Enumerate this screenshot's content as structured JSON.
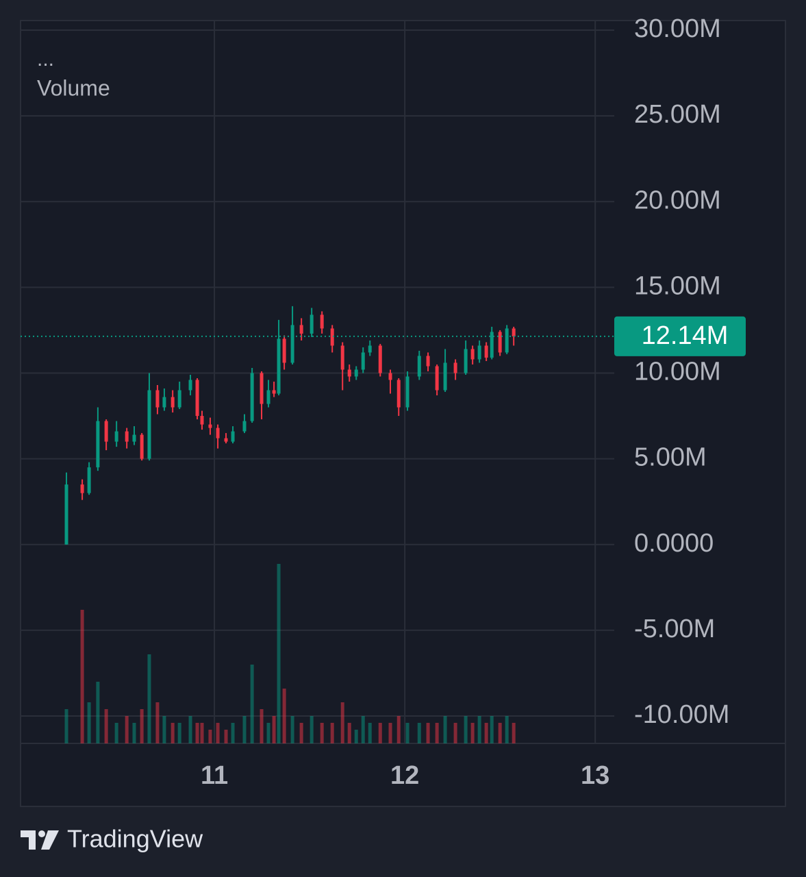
{
  "chart_data": {
    "type": "candlestick",
    "legend_title": "...",
    "legend_label": "Volume",
    "x": [
      10.223,
      10.306,
      10.342,
      10.388,
      10.432,
      10.486,
      10.54,
      10.579,
      10.619,
      10.658,
      10.701,
      10.737,
      10.781,
      10.817,
      10.874,
      10.91,
      10.935,
      10.978,
      11.018,
      11.061,
      11.097,
      11.158,
      11.198,
      11.248,
      11.284,
      11.313,
      11.338,
      11.367,
      11.41,
      11.457,
      11.511,
      11.565,
      11.619,
      11.673,
      11.709,
      11.745,
      11.781,
      11.817,
      11.871,
      11.924,
      11.968,
      12.014,
      12.076,
      12.122,
      12.169,
      12.212,
      12.266,
      12.32,
      12.356,
      12.392,
      12.428,
      12.457,
      12.5,
      12.536,
      12.572
    ],
    "open": [
      0,
      3500000.0,
      3000000.0,
      4500000.0,
      7200000.0,
      6000000.0,
      6600000.0,
      6000000.0,
      6400000.0,
      5000000.0,
      9000000.0,
      8000000.0,
      8600000.0,
      8000000.0,
      9000000.0,
      9600000.0,
      7500000.0,
      7000000.0,
      6800000.0,
      6200000.0,
      6000000.0,
      6600000.0,
      7200000.0,
      10000000.0,
      8200000.0,
      9000000.0,
      8800000.0,
      12000000.0,
      10600000.0,
      12800000.0,
      12300000.0,
      13400000.0,
      12600000.0,
      11600000.0,
      10200000.0,
      9800000.0,
      10200000.0,
      11200000.0,
      11600000.0,
      10000000.0,
      9600000.0,
      8000000.0,
      9800000.0,
      11000000.0,
      10400000.0,
      9000000.0,
      10600000.0,
      10000000.0,
      11400000.0,
      10800000.0,
      11600000.0,
      10900000.0,
      12400000.0,
      11200000.0,
      12600000.0
    ],
    "high": [
      4200000.0,
      3800000.0,
      4800000.0,
      8000000.0,
      7300000.0,
      7200000.0,
      6800000.0,
      6900000.0,
      6500000.0,
      10000000.0,
      9300000.0,
      9100000.0,
      9000000.0,
      9500000.0,
      9900000.0,
      9700000.0,
      7800000.0,
      7400000.0,
      7000000.0,
      6500000.0,
      6900000.0,
      7600000.0,
      10300000.0,
      10100000.0,
      9600000.0,
      9500000.0,
      13100000.0,
      12200000.0,
      13900000.0,
      13200000.0,
      13800000.0,
      13600000.0,
      12800000.0,
      11800000.0,
      10500000.0,
      10400000.0,
      11500000.0,
      11900000.0,
      11700000.0,
      10200000.0,
      9700000.0,
      10100000.0,
      11300000.0,
      11200000.0,
      10500000.0,
      11400000.0,
      10800000.0,
      11900000.0,
      11600000.0,
      11900000.0,
      11800000.0,
      12700000.0,
      12500000.0,
      12800000.0,
      12700000.0
    ],
    "low": [
      0,
      2600000.0,
      2900000.0,
      4300000.0,
      5500000.0,
      5700000.0,
      5600000.0,
      5800000.0,
      4900000.0,
      4900000.0,
      7600000.0,
      7800000.0,
      7700000.0,
      7900000.0,
      8700000.0,
      7300000.0,
      6700000.0,
      6400000.0,
      5600000.0,
      5900000.0,
      5900000.0,
      6500000.0,
      7100000.0,
      7300000.0,
      8000000.0,
      8600000.0,
      8700000.0,
      10200000.0,
      10500000.0,
      11900000.0,
      12100000.0,
      12300000.0,
      11200000.0,
      9000000.0,
      9500000.0,
      9600000.0,
      10000000.0,
      11000000.0,
      9800000.0,
      8800000.0,
      7500000.0,
      7800000.0,
      9600000.0,
      10100000.0,
      8700000.0,
      8900000.0,
      9600000.0,
      9900000.0,
      10500000.0,
      10600000.0,
      10700000.0,
      10800000.0,
      11000000.0,
      11100000.0,
      11600000.0
    ],
    "close": [
      3500000.0,
      3000000.0,
      4500000.0,
      7200000.0,
      6000000.0,
      6600000.0,
      6000000.0,
      6400000.0,
      5000000.0,
      9000000.0,
      8000000.0,
      8600000.0,
      8000000.0,
      9000000.0,
      9600000.0,
      7500000.0,
      7000000.0,
      6800000.0,
      6200000.0,
      6000000.0,
      6600000.0,
      7200000.0,
      10000000.0,
      8200000.0,
      9000000.0,
      8800000.0,
      12000000.0,
      10600000.0,
      12800000.0,
      12300000.0,
      13400000.0,
      12600000.0,
      11600000.0,
      10200000.0,
      9800000.0,
      10200000.0,
      11200000.0,
      11600000.0,
      10000000.0,
      9600000.0,
      8000000.0,
      9800000.0,
      11000000.0,
      10400000.0,
      9000000.0,
      10600000.0,
      10000000.0,
      11400000.0,
      10800000.0,
      11600000.0,
      10900000.0,
      12400000.0,
      11200000.0,
      12600000.0,
      12140000.0
    ],
    "volume": [
      0.5,
      1.95,
      0.6,
      0.9,
      0.5,
      0.3,
      0.4,
      0.3,
      0.5,
      1.3,
      0.6,
      0.4,
      0.3,
      0.3,
      0.4,
      0.3,
      0.3,
      0.2,
      0.3,
      0.2,
      0.3,
      0.4,
      1.15,
      0.5,
      0.3,
      0.4,
      2.62,
      0.8,
      0.4,
      0.3,
      0.4,
      0.3,
      0.3,
      0.6,
      0.3,
      0.2,
      0.4,
      0.3,
      0.3,
      0.3,
      0.4,
      0.3,
      0.3,
      0.3,
      0.3,
      0.4,
      0.3,
      0.4,
      0.3,
      0.4,
      0.3,
      0.4,
      0.3,
      0.4,
      0.3
    ],
    "up_color": "#089981",
    "down_color": "#f23645",
    "last_price": {
      "value": 12140000.0,
      "label": "12.14M"
    },
    "xlim": [
      9.982,
      13.1
    ],
    "xticks": [
      11,
      12,
      13
    ],
    "ylim": [
      -11600000.0,
      30560000.0
    ],
    "yticks": [
      {
        "value": -10000000.0,
        "label": "-10.00M"
      },
      {
        "value": -5000000.0,
        "label": "-5.00M"
      },
      {
        "value": 0,
        "label": "0.0000"
      },
      {
        "value": 5000000.0,
        "label": "5.00M"
      },
      {
        "value": 10000000.0,
        "label": "10.00M"
      },
      {
        "value": 15000000.0,
        "label": "15.00M"
      },
      {
        "value": 20000000.0,
        "label": "20.00M"
      },
      {
        "value": 25000000.0,
        "label": "25.00M"
      },
      {
        "value": 30000000.0,
        "label": "30.00M"
      }
    ],
    "grid": true
  },
  "brand": "TradingView"
}
